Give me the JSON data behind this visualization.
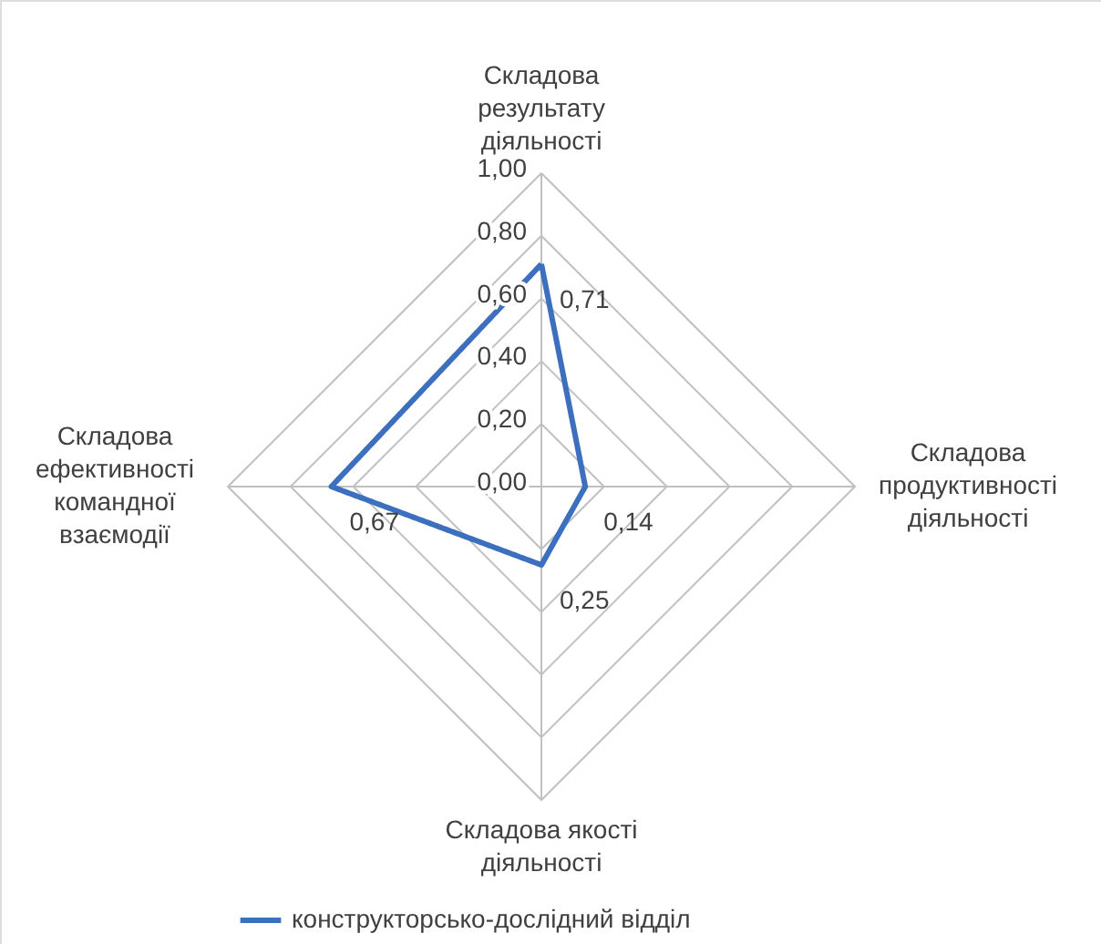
{
  "chart_data": {
    "type": "radar",
    "categories": [
      "Складова результату діяльності",
      "Складова продуктивності діяльності",
      "Складова якості діяльності",
      "Складова ефективності командної взаємодії"
    ],
    "series": [
      {
        "name": "конструкторсько-дослідний відділ",
        "color": "#3c70be",
        "values": [
          0.71,
          0.14,
          0.25,
          0.67
        ],
        "value_labels": [
          "0,71",
          "0,14",
          "0,25",
          "0,67"
        ]
      }
    ],
    "ylim": [
      0,
      1
    ],
    "yticks": [
      {
        "value": 0,
        "label": "0,00"
      },
      {
        "value": 0.2,
        "label": "0,20"
      },
      {
        "value": 0.4,
        "label": "0,40"
      },
      {
        "value": 0.6,
        "label": "0,60"
      },
      {
        "value": 0.8,
        "label": "0,80"
      },
      {
        "value": 1,
        "label": "1,00"
      }
    ],
    "grid": true,
    "legend": "bottom",
    "marker": "none",
    "line_style": "solid"
  }
}
